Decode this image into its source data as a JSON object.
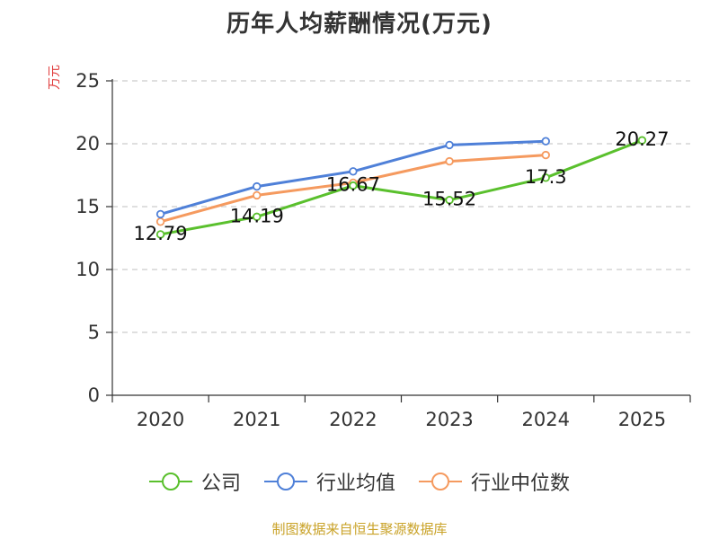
{
  "chart_data": {
    "type": "line",
    "title": "历年人均薪酬情况(万元)",
    "ylabel": "万元",
    "xlabel": "",
    "categories": [
      "2020",
      "2021",
      "2022",
      "2023",
      "2024",
      "2025"
    ],
    "ylim": [
      0,
      25
    ],
    "yticks": [
      0,
      5,
      10,
      15,
      20,
      25
    ],
    "grid": true,
    "legend_position": "bottom",
    "series": [
      {
        "name": "公司",
        "color": "#5ac02d",
        "values": [
          12.79,
          14.19,
          16.67,
          15.52,
          17.3,
          20.27
        ],
        "labels": [
          "12.79",
          "14.19",
          "16.67",
          "15.52",
          "17.3",
          "20.27"
        ]
      },
      {
        "name": "行业均值",
        "color": "#4f80d8",
        "values": [
          14.4,
          16.6,
          17.8,
          19.9,
          20.2,
          null
        ]
      },
      {
        "name": "行业中位数",
        "color": "#f59a5f",
        "values": [
          13.8,
          15.9,
          16.9,
          18.6,
          19.1,
          null
        ]
      }
    ]
  },
  "source": "制图数据来自恒生聚源数据库"
}
